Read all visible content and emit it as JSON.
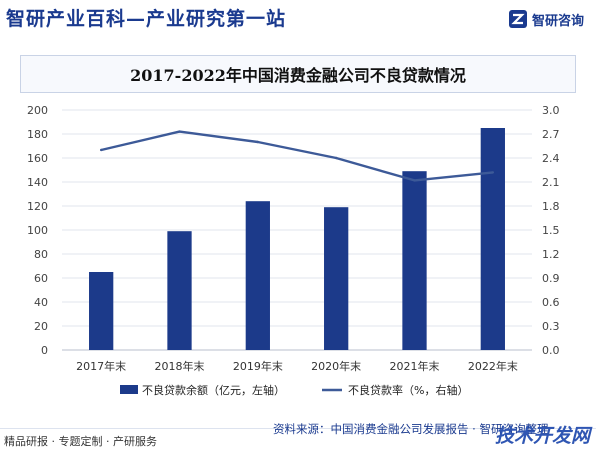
{
  "header": {
    "site_title": "智研产业百科—产业研究第一站",
    "brand_name": "智研咨询"
  },
  "chart_data": {
    "type": "bar",
    "title": "2017-2022年中国消费金融公司不良贷款情况",
    "categories": [
      "2017年末",
      "2018年末",
      "2019年末",
      "2020年末",
      "2021年末",
      "2022年末"
    ],
    "series": [
      {
        "name": "不良贷款余额（亿元，左轴）",
        "type": "bar",
        "axis": "left",
        "values": [
          65,
          99,
          124,
          119,
          149,
          185
        ],
        "color": "#1c3a8a"
      },
      {
        "name": "不良贷款率（%，右轴）",
        "type": "line",
        "axis": "right",
        "values": [
          2.5,
          2.73,
          2.6,
          2.4,
          2.12,
          2.22
        ],
        "color": "#3d5a98"
      }
    ],
    "ylim_left": [
      0,
      200
    ],
    "yticks_left": [
      "0",
      "20",
      "40",
      "60",
      "80",
      "100",
      "120",
      "140",
      "160",
      "180",
      "200"
    ],
    "ylim_right": [
      0,
      3.0
    ],
    "yticks_right": [
      "0.0",
      "0.3",
      "0.6",
      "0.9",
      "1.2",
      "1.5",
      "1.8",
      "2.1",
      "2.4",
      "2.7",
      "3.0"
    ],
    "grid": true,
    "legend_position": "bottom"
  },
  "footer": {
    "services": "精品研报 · 专题定制 · 产研服务",
    "source": "资料来源：中国消费金融公司发展报告 · 智研咨询整理",
    "watermark": "技术开发网"
  }
}
